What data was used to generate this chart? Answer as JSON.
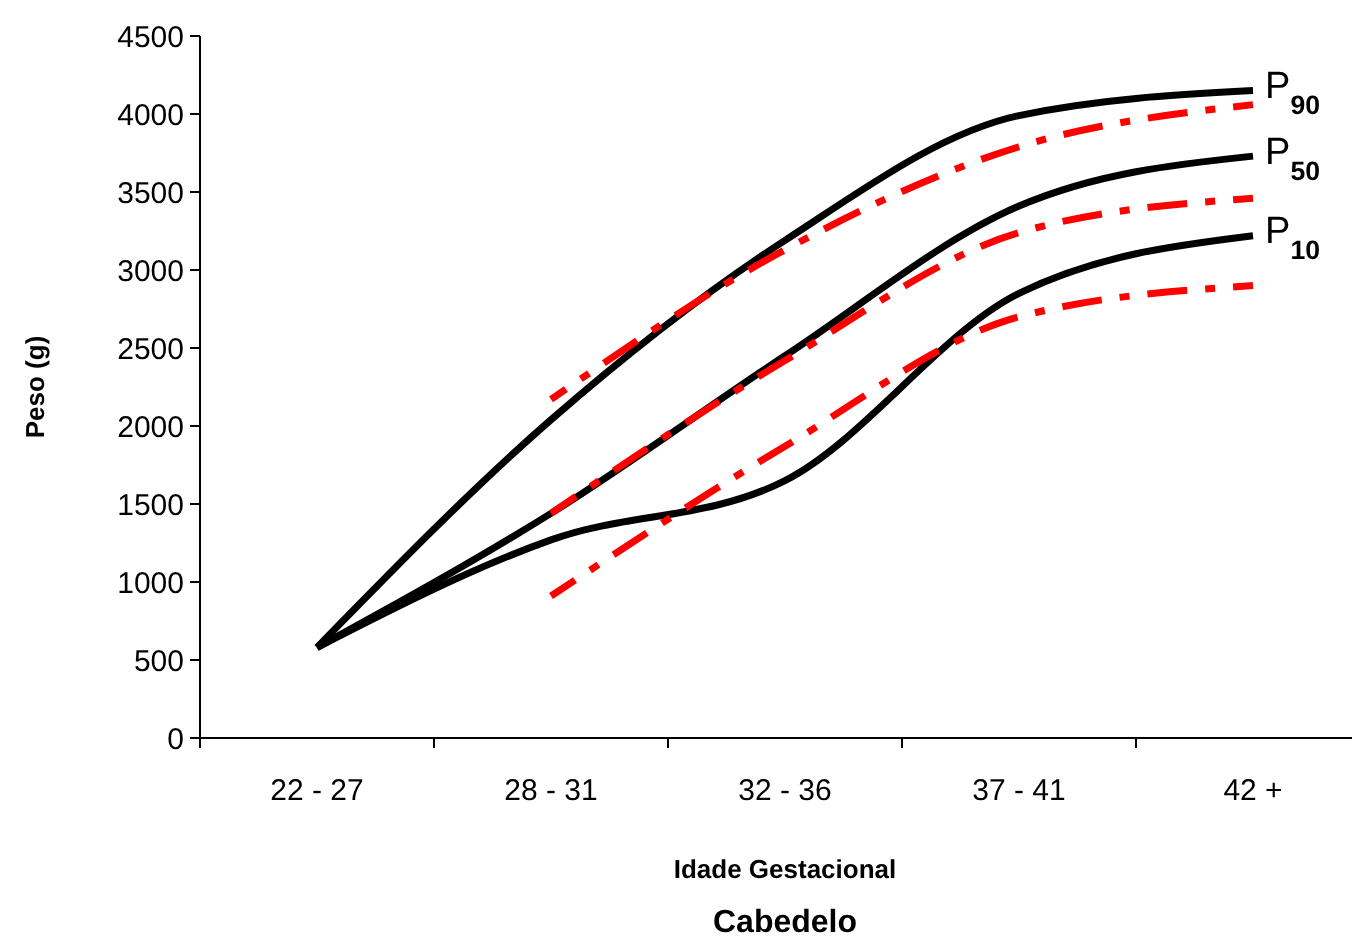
{
  "chart_data": {
    "type": "line",
    "xlabel": "Idade Gestacional",
    "ylabel": "Peso (g)",
    "annotations": [
      "Cabedelo"
    ],
    "categories": [
      "22 - 27",
      "28 - 31",
      "32 - 36",
      "37 - 41",
      "42 +"
    ],
    "ylim": [
      0,
      4500
    ],
    "yticks": [
      0,
      500,
      1000,
      1500,
      2000,
      2500,
      3000,
      3500,
      4000,
      4500
    ],
    "grid": false,
    "series": [
      {
        "name": "P$_{90}$",
        "color": "#000000",
        "line_style": "solid",
        "values": [
          580,
          2040,
          3190,
          3990,
          4150
        ]
      },
      {
        "name": "P$_{50}$",
        "color": "#000000",
        "line_style": "solid",
        "values": [
          580,
          1440,
          2450,
          3410,
          3730
        ]
      },
      {
        "name": "P$_{10}$",
        "color": "#000000",
        "line_style": "solid",
        "values": [
          580,
          1270,
          1650,
          2850,
          3220
        ]
      },
      {
        "color": "#ff0000",
        "line_style": "dashed",
        "values": [
          null,
          2170,
          3130,
          3790,
          4060
        ]
      },
      {
        "color": "#ff0000",
        "line_style": "dashed",
        "values": [
          null,
          1440,
          2420,
          3240,
          3460
        ]
      },
      {
        "color": "#ff0000",
        "line_style": "dashed",
        "values": [
          null,
          910,
          1870,
          2700,
          2900
        ]
      }
    ]
  }
}
